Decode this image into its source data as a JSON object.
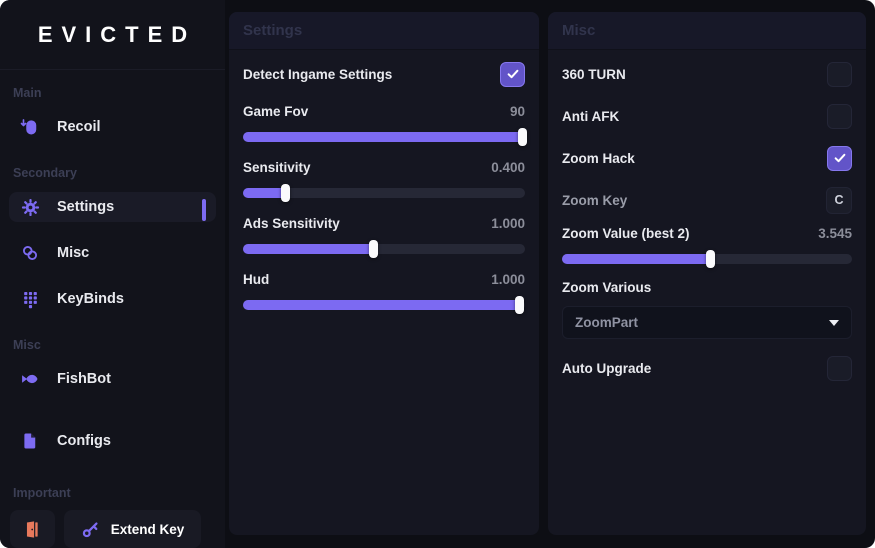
{
  "colors": {
    "accent": "#7c6af2",
    "checkbox_checked_bg": "#6254c8",
    "checkbox_checked_border": "#8678ee",
    "slider_track": "#262836",
    "slider_handle": "#fafafc",
    "exit_icon": "#e8795c",
    "panel_bg": "#151621",
    "sidebar_bg": "#12131b",
    "page_bg": "#0d0e14",
    "panel_title_text": "#31344c"
  },
  "sidebar": {
    "logo": "EVICTED",
    "section_main": "Main",
    "section_secondary": "Secondary",
    "section_misc": "Misc",
    "section_important": "Important",
    "items": {
      "recoil": "Recoil",
      "settings": "Settings",
      "misc": "Misc",
      "keybinds": "KeyBinds",
      "fishbot": "FishBot",
      "configs": "Configs"
    },
    "extend_key_label": "Extend Key"
  },
  "settings_panel": {
    "title": "Settings",
    "rows": {
      "detect": {
        "label": "Detect Ingame Settings",
        "checked": true
      },
      "game_fov": {
        "label": "Game Fov",
        "value": "90",
        "fill_pct": 100
      },
      "sensitivity": {
        "label": "Sensitivity",
        "value": "0.400",
        "fill_pct": 16
      },
      "ads_sensitivity": {
        "label": "Ads Sensitivity",
        "value": "1.000",
        "fill_pct": 47
      },
      "hud": {
        "label": "Hud",
        "value": "1.000",
        "fill_pct": 99
      }
    }
  },
  "misc_panel": {
    "title": "Misc",
    "rows": {
      "turn360": {
        "label": "360 TURN",
        "checked": false
      },
      "anti_afk": {
        "label": "Anti AFK",
        "checked": false
      },
      "zoom_hack": {
        "label": "Zoom Hack",
        "checked": true
      },
      "zoom_key": {
        "label": "Zoom Key",
        "key": "C"
      },
      "zoom_value": {
        "label": "Zoom Value (best 2)",
        "value": "3.545",
        "fill_pct": 52
      },
      "zoom_various": {
        "label": "Zoom Various",
        "selected": "ZoomPart"
      },
      "auto_upgrade": {
        "label": "Auto Upgrade",
        "checked": false
      }
    }
  }
}
